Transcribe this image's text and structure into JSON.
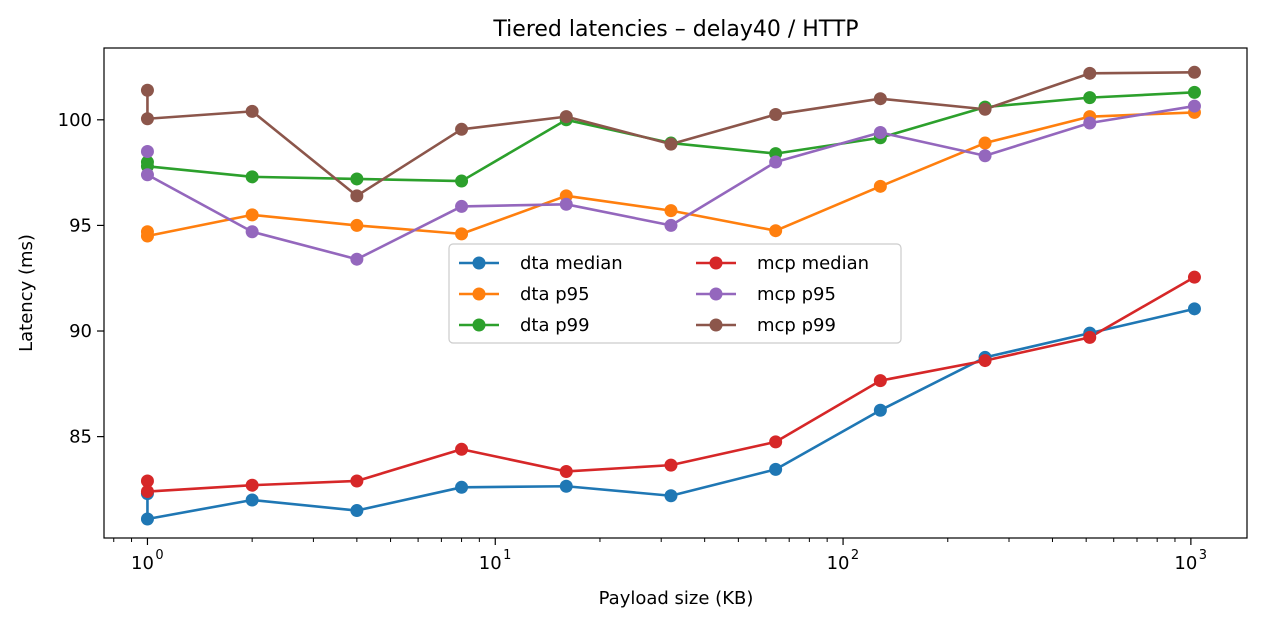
{
  "chart_data": {
    "type": "line",
    "title": "Tiered latencies – delay40 / HTTP",
    "xlabel": "Payload size (KB)",
    "ylabel": "Latency (ms)",
    "xscale": "log",
    "xlim": [
      0.75,
      1450
    ],
    "ylim": [
      80.2,
      103.4
    ],
    "x_ticks": [
      {
        "base": "10",
        "exp": "0"
      },
      {
        "base": "10",
        "exp": "1"
      },
      {
        "base": "10",
        "exp": "2"
      },
      {
        "base": "10",
        "exp": "3"
      }
    ],
    "y_ticks": [
      "85",
      "90",
      "95",
      "100"
    ],
    "grid": false,
    "legend": {
      "position": "center",
      "columns": 2
    },
    "series": [
      {
        "name": "dta median",
        "color": "#1f77b4",
        "points": [
          [
            1,
            82.3
          ],
          [
            1,
            81.1
          ],
          [
            2,
            82.0
          ],
          [
            4,
            81.5
          ],
          [
            8,
            82.6
          ],
          [
            16,
            82.65
          ],
          [
            32,
            82.2
          ],
          [
            64,
            83.45
          ],
          [
            128,
            86.25
          ],
          [
            256,
            88.75
          ],
          [
            512,
            89.9
          ],
          [
            1024,
            91.05
          ]
        ]
      },
      {
        "name": "dta p95",
        "color": "#ff7f0e",
        "points": [
          [
            1,
            94.7
          ],
          [
            1,
            94.5
          ],
          [
            2,
            95.5
          ],
          [
            4,
            95.0
          ],
          [
            8,
            94.6
          ],
          [
            16,
            96.4
          ],
          [
            32,
            95.7
          ],
          [
            64,
            94.75
          ],
          [
            128,
            96.85
          ],
          [
            256,
            98.9
          ],
          [
            512,
            100.15
          ],
          [
            1024,
            100.35
          ]
        ]
      },
      {
        "name": "dta p99",
        "color": "#2ca02c",
        "points": [
          [
            1,
            98.0
          ],
          [
            1,
            97.8
          ],
          [
            2,
            97.3
          ],
          [
            4,
            97.2
          ],
          [
            8,
            97.1
          ],
          [
            16,
            100.0
          ],
          [
            32,
            98.9
          ],
          [
            64,
            98.4
          ],
          [
            128,
            99.15
          ],
          [
            256,
            100.6
          ],
          [
            512,
            101.05
          ],
          [
            1024,
            101.3
          ]
        ]
      },
      {
        "name": "mcp median",
        "color": "#d62728",
        "points": [
          [
            1,
            82.9
          ],
          [
            1,
            82.4
          ],
          [
            2,
            82.7
          ],
          [
            4,
            82.9
          ],
          [
            8,
            84.4
          ],
          [
            16,
            83.35
          ],
          [
            32,
            83.65
          ],
          [
            64,
            84.75
          ],
          [
            128,
            87.65
          ],
          [
            256,
            88.6
          ],
          [
            512,
            89.7
          ],
          [
            1024,
            92.55
          ]
        ]
      },
      {
        "name": "mcp p95",
        "color": "#9467bd",
        "points": [
          [
            1,
            98.5
          ],
          [
            1,
            97.4
          ],
          [
            2,
            94.7
          ],
          [
            4,
            93.4
          ],
          [
            8,
            95.9
          ],
          [
            16,
            96.0
          ],
          [
            32,
            95.0
          ],
          [
            64,
            98.0
          ],
          [
            128,
            99.4
          ],
          [
            256,
            98.3
          ],
          [
            512,
            99.85
          ],
          [
            1024,
            100.65
          ]
        ]
      },
      {
        "name": "mcp p99",
        "color": "#8c564b",
        "points": [
          [
            1,
            101.4
          ],
          [
            1,
            100.05
          ],
          [
            2,
            100.4
          ],
          [
            4,
            96.4
          ],
          [
            8,
            99.55
          ],
          [
            16,
            100.15
          ],
          [
            32,
            98.85
          ],
          [
            64,
            100.25
          ],
          [
            128,
            101.0
          ],
          [
            256,
            100.5
          ],
          [
            512,
            102.2
          ],
          [
            1024,
            102.25
          ]
        ]
      }
    ]
  }
}
